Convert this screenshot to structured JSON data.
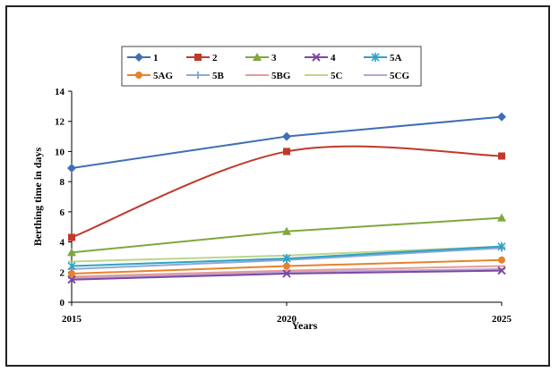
{
  "chart_data": {
    "type": "line",
    "title": "",
    "xlabel": "Years",
    "ylabel": "Berthing time in days",
    "categories": [
      "2015",
      "2020",
      "2025"
    ],
    "ylim": [
      0,
      14
    ],
    "yticks": [
      0,
      2,
      4,
      6,
      8,
      10,
      12,
      14
    ],
    "grid": false,
    "legend_position": "top",
    "series": [
      {
        "name": "1",
        "values": [
          8.9,
          11.0,
          12.3
        ],
        "color": "#3f6fb5",
        "marker": "diamond",
        "smooth": false
      },
      {
        "name": "2",
        "values": [
          4.3,
          10.0,
          9.7
        ],
        "color": "#c0392b",
        "marker": "square",
        "smooth": true
      },
      {
        "name": "3",
        "values": [
          3.3,
          4.7,
          5.6
        ],
        "color": "#7ea83c",
        "marker": "triangle",
        "smooth": false
      },
      {
        "name": "4",
        "values": [
          1.5,
          1.9,
          2.1
        ],
        "color": "#7b4aa0",
        "marker": "x",
        "smooth": false
      },
      {
        "name": "5A",
        "values": [
          2.4,
          2.9,
          3.7
        ],
        "color": "#2ea3c6",
        "marker": "star",
        "smooth": false
      },
      {
        "name": "5AG",
        "values": [
          1.9,
          2.4,
          2.8
        ],
        "color": "#e8822a",
        "marker": "circle",
        "smooth": false
      },
      {
        "name": "5B",
        "values": [
          2.2,
          2.8,
          3.6
        ],
        "color": "#8fa8d8",
        "marker": "plus",
        "smooth": false
      },
      {
        "name": "5BG",
        "values": [
          1.7,
          2.1,
          2.4
        ],
        "color": "#e59a9a",
        "marker": "dash",
        "smooth": false
      },
      {
        "name": "5C",
        "values": [
          2.7,
          3.1,
          3.7
        ],
        "color": "#bcd68a",
        "marker": "dash",
        "smooth": false
      },
      {
        "name": "5CG",
        "values": [
          1.6,
          2.0,
          2.2
        ],
        "color": "#b9a4d4",
        "marker": "dash",
        "smooth": false
      }
    ]
  }
}
